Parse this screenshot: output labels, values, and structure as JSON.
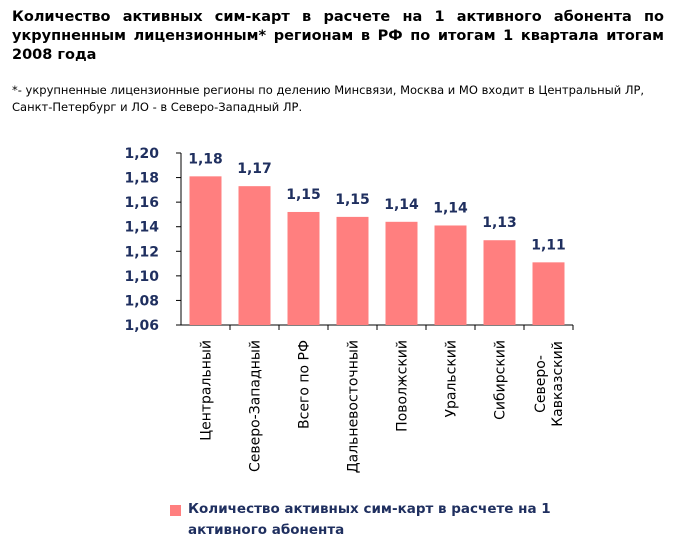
{
  "title": "Количество активных сим-карт в расчете на 1 активного абонента по укрупненным лицензионным* регионам в РФ по итогам 1 квартала итогам 2008 года",
  "note": "*- укрупненные лицензионные регионы по делению Минсвязи, Москва и МО входит в Центральный ЛР, Санкт-Петербург и ЛО - в Северо-Западный ЛР.",
  "legend": {
    "label": "Количество активных сим-карт в расчете на 1 активного абонента"
  },
  "colors": {
    "bar": "#ff7f7f",
    "data_label": "#1f2f5f",
    "axis": "#000000"
  },
  "chart_data": {
    "type": "bar",
    "categories": [
      "Центральный",
      "Северо-Западный",
      "Всего по РФ",
      "Дальневосточный",
      "Поволжский",
      "Уральский",
      "Сибирский",
      "Северо-Кавказский"
    ],
    "category_lines": [
      [
        "Центральный"
      ],
      [
        "Северо-Западный"
      ],
      [
        "Всего по РФ"
      ],
      [
        "Дальневосточный"
      ],
      [
        "Поволжский"
      ],
      [
        "Уральский"
      ],
      [
        "Сибирский"
      ],
      [
        "Северо-",
        "Кавказский"
      ]
    ],
    "values": [
      1.181,
      1.173,
      1.152,
      1.148,
      1.144,
      1.141,
      1.129,
      1.111
    ],
    "value_labels": [
      "1,18",
      "1,17",
      "1,15",
      "1,15",
      "1,14",
      "1,14",
      "1,13",
      "1,11"
    ],
    "yticks": [
      "1,06",
      "1,08",
      "1,10",
      "1,12",
      "1,14",
      "1,16",
      "1,18",
      "1,20"
    ],
    "ylim": [
      1.06,
      1.2
    ],
    "legend_position": "bottom",
    "grid": false
  }
}
